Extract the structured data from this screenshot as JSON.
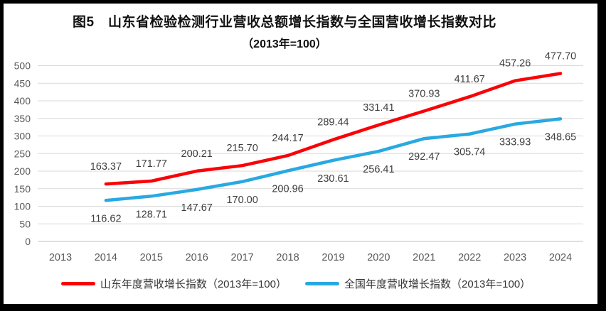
{
  "frame": {
    "border_color": "#000000",
    "surface_color": "#ffffff"
  },
  "chart_data": {
    "type": "line",
    "title": "图5　山东省检验检测行业营收总额增长指数与全国营收增长指数对比",
    "subtitle": "（2013年=100）",
    "categories": [
      "2013",
      "2014",
      "2015",
      "2016",
      "2017",
      "2018",
      "2019",
      "2020",
      "2021",
      "2022",
      "2023",
      "2024"
    ],
    "xlabel": "",
    "ylabel": "",
    "ylim": [
      0,
      500
    ],
    "y_ticks": [
      0,
      50,
      100,
      150,
      200,
      250,
      300,
      350,
      400,
      450,
      500
    ],
    "grid": "horizontal-only",
    "legend_position": "bottom",
    "data_label_format": "two-decimals",
    "series": [
      {
        "name": "山东年度营收增长指数（2013年=100）",
        "color": "#FB0006",
        "label_side": "above",
        "values": [
          null,
          163.37,
          171.77,
          200.21,
          215.7,
          244.17,
          289.44,
          331.41,
          370.93,
          411.67,
          457.26,
          477.7
        ]
      },
      {
        "name": "全国年度营收增长指数（2013年=100）",
        "color": "#29A9E1",
        "label_side": "below",
        "values": [
          null,
          116.62,
          128.71,
          147.67,
          170.0,
          200.96,
          230.61,
          256.41,
          292.47,
          305.74,
          333.93,
          348.65
        ]
      }
    ],
    "style": {
      "axis_label_color": "#595959",
      "data_label_color": "#3F3F3F",
      "gridline_color": "#D9D9D9",
      "axis_line_color": "#C0C0C0",
      "title_color": "#111111"
    }
  }
}
